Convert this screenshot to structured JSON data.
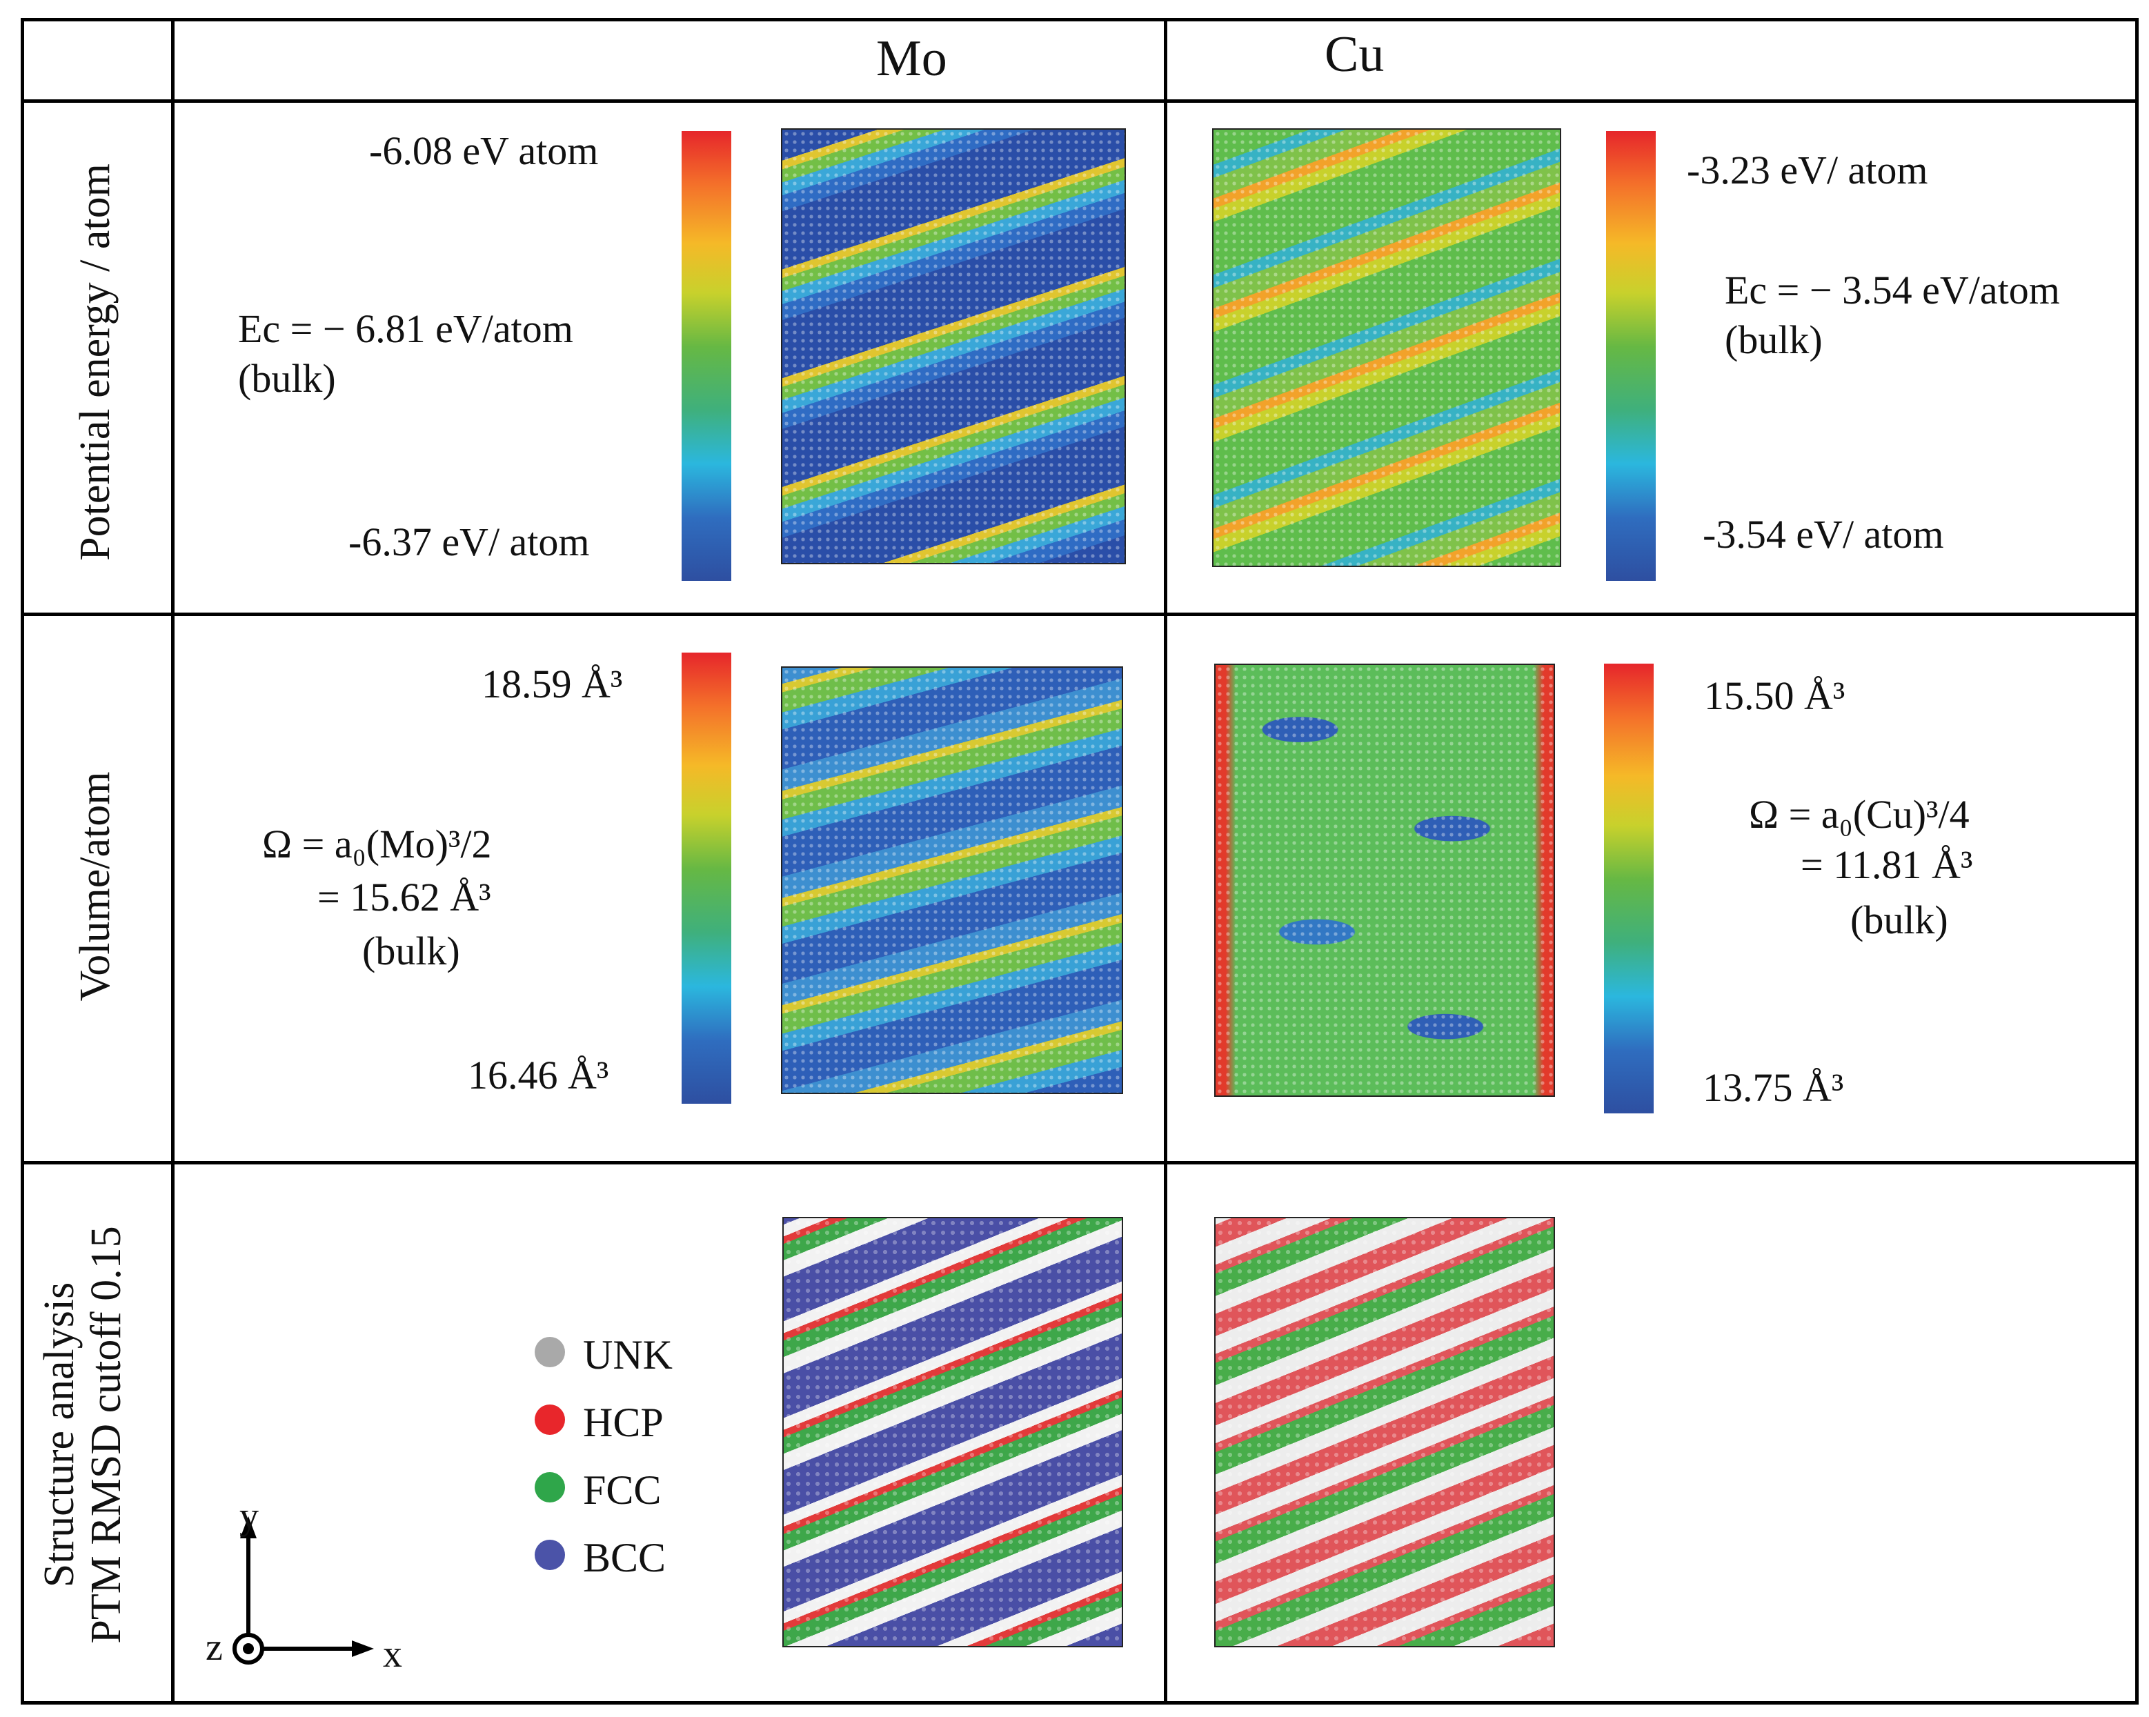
{
  "header": {
    "col_mo": "Mo",
    "col_cu": "Cu"
  },
  "rows": {
    "potential_energy": {
      "label": "Potential energy / atom",
      "mo": {
        "max": "-6.08 eV atom",
        "bulk_line1": "Ec = − 6.81 eV/atom",
        "bulk_line2": "(bulk)",
        "min": "-6.37 eV/ atom"
      },
      "cu": {
        "max": "-3.23 eV/ atom",
        "bulk_line1": "Ec = − 3.54 eV/atom",
        "bulk_line2": "(bulk)",
        "min": "-3.54 eV/ atom"
      }
    },
    "volume": {
      "label": "Volume/atom",
      "mo": {
        "max": "18.59 Å³",
        "bulk_line1": "Ω = a₀(Mo)³/2",
        "bulk_line2": "= 15.62 Å³",
        "bulk_line3": "(bulk)",
        "min": "16.46 Å³"
      },
      "cu": {
        "max": "15.50 Å³",
        "bulk_line1": "Ω = a₀(Cu)³/4",
        "bulk_line2": "= 11.81 Å³",
        "bulk_line3": "(bulk)",
        "min": "13.75 Å³"
      }
    },
    "structure": {
      "label_line1": "Structure analysis",
      "label_line2": "PTM RMSD cutoff 0.15",
      "legend": [
        {
          "label": "UNK",
          "color": "#a9a9a9"
        },
        {
          "label": "HCP",
          "color": "#e8262b"
        },
        {
          "label": "FCC",
          "color": "#2fa64a"
        },
        {
          "label": "BCC",
          "color": "#4b53a8"
        }
      ],
      "axes": {
        "y": "y",
        "x": "x",
        "z": "z"
      }
    }
  },
  "colorbar_icon": "jet-colormap"
}
